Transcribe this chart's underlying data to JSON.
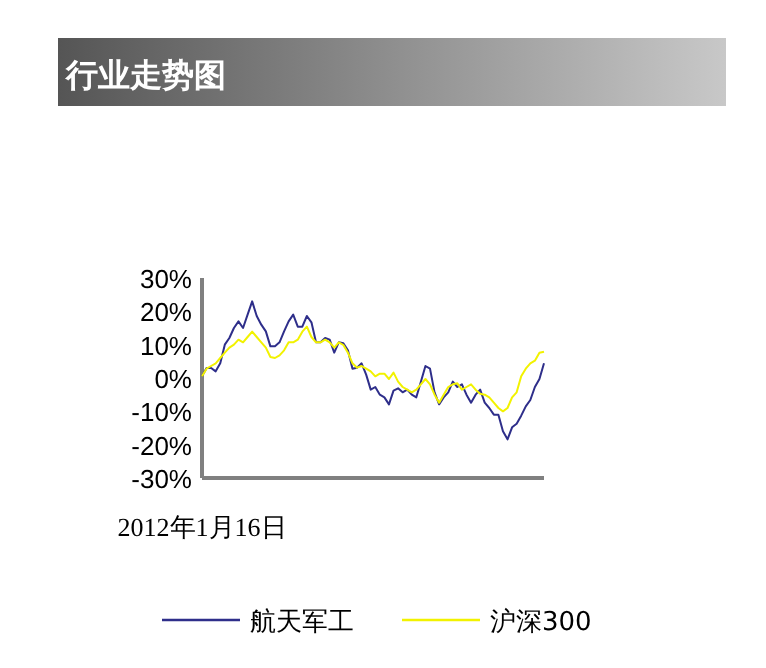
{
  "chart_data": {
    "type": "line",
    "title": "行业走势图",
    "categories": [
      "2012年1月16日",
      null,
      null,
      null,
      null,
      null,
      null,
      null,
      null,
      null,
      null,
      null,
      null,
      null,
      null,
      null,
      null,
      null,
      null,
      null,
      null,
      null,
      null,
      null,
      null,
      null,
      null,
      null,
      null,
      null,
      null,
      null,
      null,
      null,
      null,
      null,
      null,
      null,
      null,
      null,
      null,
      null,
      null,
      null,
      null,
      null,
      null,
      null,
      null,
      null,
      null,
      null,
      null,
      null,
      null,
      null,
      null,
      null,
      null,
      null,
      null,
      null,
      null,
      null,
      null,
      null,
      null,
      null,
      null,
      null,
      null,
      null,
      null,
      null,
      null,
      null
    ],
    "series": [
      {
        "name": "航天军工",
        "color": "#2e2e8a",
        "values": [
          0.5,
          3,
          3,
          2,
          4.4,
          10,
          12,
          15,
          17,
          15,
          19,
          23,
          18.6,
          16,
          14,
          9.5,
          9.5,
          10.7,
          14,
          17,
          19,
          15.4,
          15.4,
          18.6,
          16.7,
          10.7,
          10.7,
          12,
          11.5,
          7.6,
          10.7,
          10.4,
          8.3,
          2.8,
          3.1,
          4.4,
          1,
          -3.5,
          -2.7,
          -5,
          -5.8,
          -7.9,
          -3.8,
          -3.1,
          -4.3,
          -3.5,
          -5,
          -5.8,
          -1.1,
          3.6,
          2.8,
          -4.3,
          -7.9,
          -5.8,
          -4.3,
          -1.1,
          -2.7,
          -1.9,
          -5,
          -7.4,
          -5,
          -3.5,
          -7.4,
          -9,
          -11,
          -11,
          -16,
          -18.4,
          -14.8,
          -13.7,
          -11.3,
          -8.5,
          -6.6,
          -2.7,
          -0.3,
          4.4
        ]
      },
      {
        "name": "沪深300",
        "color": "#f2f200",
        "values": [
          0.5,
          2.8,
          3.6,
          4.4,
          6,
          7.6,
          9.1,
          10,
          11.5,
          10.7,
          12.3,
          13.9,
          12.3,
          10.7,
          9.1,
          6.3,
          6,
          6.8,
          8.3,
          10.7,
          10.7,
          11.5,
          13.9,
          15.4,
          12.3,
          10.7,
          10.7,
          11.5,
          10.7,
          9.1,
          10.7,
          9.9,
          7.6,
          4.4,
          3.1,
          3.6,
          2.8,
          2,
          0.5,
          1.3,
          1.3,
          -0.3,
          1.6,
          -1.1,
          -2.7,
          -3.5,
          -4.3,
          -3.5,
          -1.9,
          -0.3,
          -1.9,
          -5,
          -7.4,
          -5,
          -2.7,
          -1.9,
          -1.6,
          -3.5,
          -2.7,
          -1.9,
          -3.5,
          -4.7,
          -5,
          -5.8,
          -7.4,
          -9,
          -10,
          -9,
          -5.8,
          -4.3,
          0.5,
          2.8,
          4.4,
          5.2,
          7.6,
          7.9
        ]
      }
    ],
    "ylim": [
      -30,
      30
    ],
    "yticks": [
      {
        "value": 30,
        "label": "30%"
      },
      {
        "value": 20,
        "label": "20%"
      },
      {
        "value": 10,
        "label": "10%"
      },
      {
        "value": 0,
        "label": "0%"
      },
      {
        "value": -10,
        "label": "-10%"
      },
      {
        "value": -20,
        "label": "-20%"
      },
      {
        "value": -30,
        "label": "-30%"
      }
    ],
    "legend": "bottom"
  }
}
